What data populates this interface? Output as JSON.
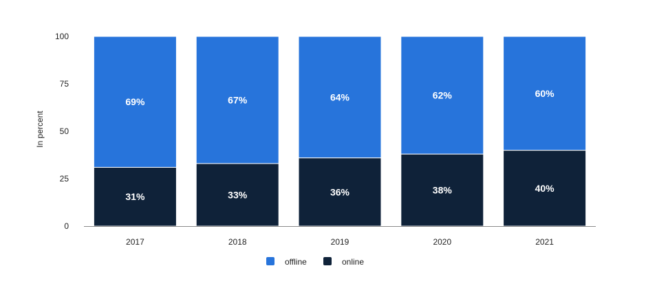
{
  "chart_data": {
    "type": "bar",
    "stacked": true,
    "categories": [
      "2017",
      "2018",
      "2019",
      "2020",
      "2021"
    ],
    "series": [
      {
        "name": "online",
        "values": [
          31,
          33,
          36,
          38,
          40
        ],
        "labels": [
          "31%",
          "33%",
          "36%",
          "38%",
          "40%"
        ],
        "color": "#0f2239"
      },
      {
        "name": "offline",
        "values": [
          69,
          67,
          64,
          62,
          60
        ],
        "labels": [
          "69%",
          "67%",
          "64%",
          "62%",
          "60%"
        ],
        "color": "#2774db"
      }
    ],
    "ylabel": "In percent",
    "ylim": [
      0,
      100
    ],
    "yticks": [
      "0",
      "25",
      "50",
      "75",
      "100"
    ],
    "grid": false,
    "legend": {
      "position": "bottom",
      "items": [
        "offline",
        "online"
      ]
    }
  }
}
